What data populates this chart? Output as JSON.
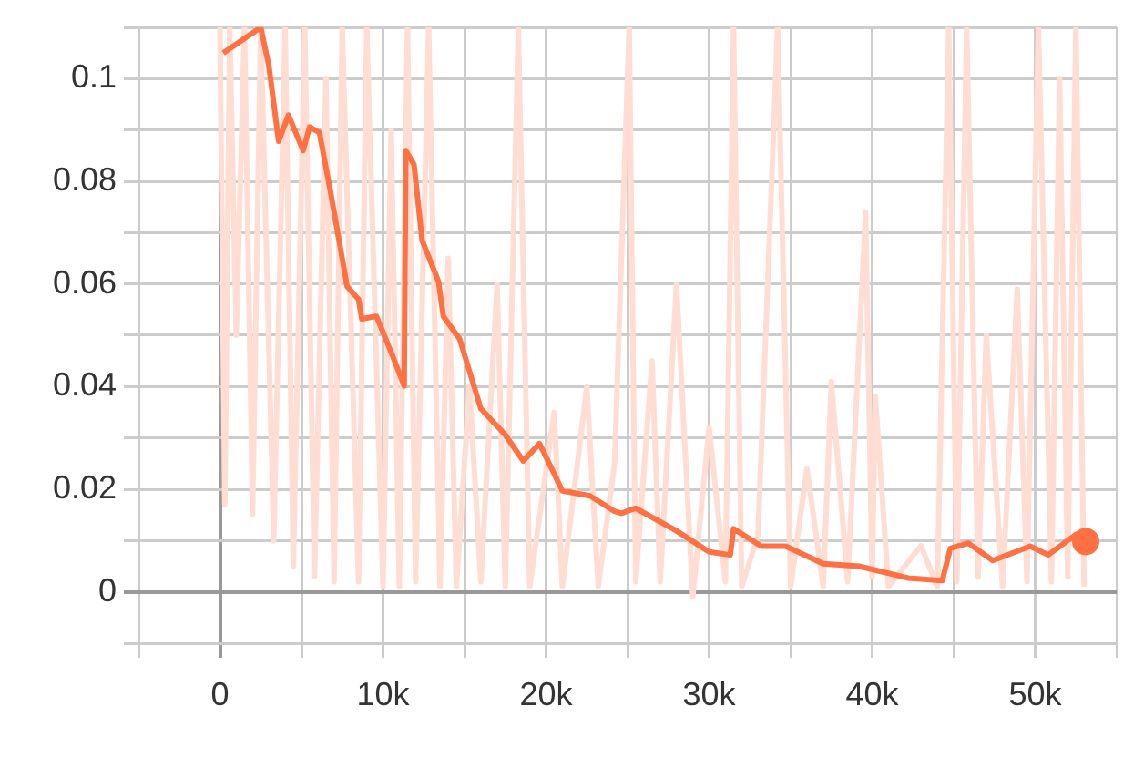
{
  "chart_data": {
    "type": "line",
    "xlim": [
      -5000,
      55000
    ],
    "ylim": [
      -0.01,
      0.11
    ],
    "xticks": [
      {
        "value": -5000,
        "label": null
      },
      0,
      {
        "value": 5000,
        "label": null
      },
      {
        "value": 10000,
        "label": "10k"
      },
      {
        "value": 15000,
        "label": null
      },
      {
        "value": 20000,
        "label": "20k"
      },
      {
        "value": 25000,
        "label": null
      },
      {
        "value": 30000,
        "label": "30k"
      },
      {
        "value": 35000,
        "label": null
      },
      {
        "value": 40000,
        "label": "40k"
      },
      {
        "value": 45000,
        "label": null
      },
      {
        "value": 50000,
        "label": "50k"
      },
      {
        "value": 55000,
        "label": null
      }
    ],
    "yticks": [
      {
        "value": -0.01,
        "label": null
      },
      0,
      {
        "value": 0.01,
        "label": null
      },
      0.02,
      {
        "value": 0.03,
        "label": null
      },
      0.04,
      {
        "value": 0.05,
        "label": null
      },
      0.06,
      {
        "value": 0.07,
        "label": null
      },
      0.08,
      {
        "value": 0.09,
        "label": null
      },
      0.1,
      {
        "value": 0.11,
        "label": null
      }
    ],
    "grid": true,
    "legend": false,
    "series": [
      {
        "color": "#ffddd3",
        "x": [
          0,
          300,
          600,
          1000,
          1500,
          2000,
          2500,
          3300,
          4000,
          4500,
          5200,
          5800,
          6500,
          7000,
          7500,
          8500,
          9000,
          10000,
          10500,
          11000,
          11500,
          12000,
          12800,
          13500,
          14000,
          14500,
          15300,
          16000,
          17000,
          17500,
          18300,
          19000,
          20500,
          21000,
          22500,
          23200,
          24200,
          25100,
          25500,
          26500,
          27000,
          28000,
          29000,
          30000,
          31000,
          31500,
          32000,
          33000,
          34200,
          35000,
          36000,
          37000,
          37500,
          38500,
          39600,
          40000,
          40200,
          41000,
          43000,
          44000,
          44700,
          45200,
          45800,
          46500,
          47000,
          48000,
          48900,
          49500,
          50200,
          51000,
          51500,
          52000,
          52500,
          53000
        ],
        "values": [
          0.11,
          0.017,
          0.11,
          0.05,
          0.11,
          0.015,
          0.11,
          0.01,
          0.11,
          0.005,
          0.11,
          0.003,
          0.1,
          0.002,
          0.11,
          0.002,
          0.11,
          0.001,
          0.09,
          0.001,
          0.11,
          0.002,
          0.11,
          0.001,
          0.065,
          0.001,
          0.04,
          0.002,
          0.06,
          0.001,
          0.11,
          0.001,
          0.035,
          0.001,
          0.04,
          0.001,
          0.025,
          0.11,
          0.002,
          0.045,
          0.002,
          0.06,
          -0.001,
          0.032,
          0.002,
          0.11,
          0.001,
          0.011,
          0.11,
          0.001,
          0.024,
          0.001,
          0.041,
          0.002,
          0.074,
          0.003,
          0.038,
          0.001,
          0.009,
          0.001,
          0.11,
          0.002,
          0.11,
          0.003,
          0.05,
          0.001,
          0.059,
          0.002,
          0.11,
          0.002,
          0.1,
          0.003,
          0.11,
          0.001
        ]
      },
      {
        "color": "#ff7043",
        "x": [
          200,
          2500,
          3000,
          3600,
          4200,
          5100,
          5500,
          6100,
          6800,
          7800,
          8500,
          8700,
          9600,
          10600,
          11300,
          11400,
          11900,
          12400,
          13400,
          13700,
          14700,
          16000,
          17500,
          18600,
          19600,
          21000,
          22700,
          24200,
          24600,
          25500,
          28000,
          30000,
          31300,
          31500,
          33200,
          34700,
          37000,
          39200,
          42200,
          44300,
          44800,
          45900,
          47400,
          49700,
          50800,
          52500,
          53100
        ],
        "values": [
          0.105,
          0.11,
          0.1025,
          0.0878,
          0.0929,
          0.086,
          0.0906,
          0.0895,
          0.0776,
          0.0595,
          0.057,
          0.0532,
          0.0537,
          0.0459,
          0.0401,
          0.086,
          0.0833,
          0.0685,
          0.0605,
          0.0537,
          0.0493,
          0.0357,
          0.0306,
          0.0255,
          0.0289,
          0.0197,
          0.0187,
          0.0157,
          0.0153,
          0.0163,
          0.0119,
          0.0078,
          0.0072,
          0.0123,
          0.0089,
          0.0089,
          0.0055,
          0.005,
          0.0027,
          0.0022,
          0.0085,
          0.0095,
          0.0061,
          0.0089,
          0.0072,
          0.0112,
          0.0098
        ]
      }
    ]
  }
}
